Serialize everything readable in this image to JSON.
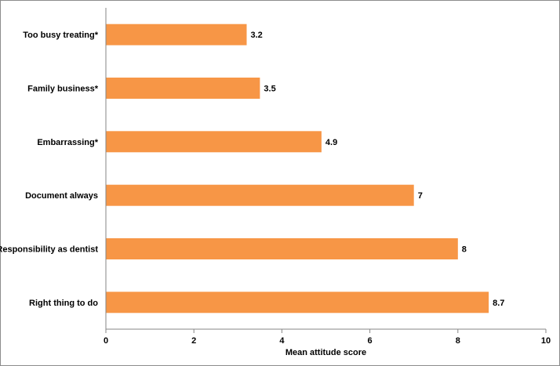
{
  "chart_data": {
    "type": "bar",
    "orientation": "horizontal",
    "categories": [
      "Too busy treating*",
      "Family business*",
      "Embarrassing*",
      "Document always",
      "Responsibility as dentist",
      "Right thing to do"
    ],
    "values": [
      3.2,
      3.5,
      4.9,
      7,
      8,
      8.7
    ],
    "value_labels": [
      "3.2",
      "3.5",
      "4.9",
      "7",
      "8",
      "8.7"
    ],
    "xlabel": "Mean attitude score",
    "ylabel": "",
    "xlim": [
      0,
      10
    ],
    "xticks": [
      0,
      2,
      4,
      6,
      8,
      10
    ],
    "xtick_labels": [
      "0",
      "2",
      "4",
      "6",
      "8",
      "10"
    ],
    "grid": false,
    "legend": "none",
    "bar_color": "#f79646"
  }
}
